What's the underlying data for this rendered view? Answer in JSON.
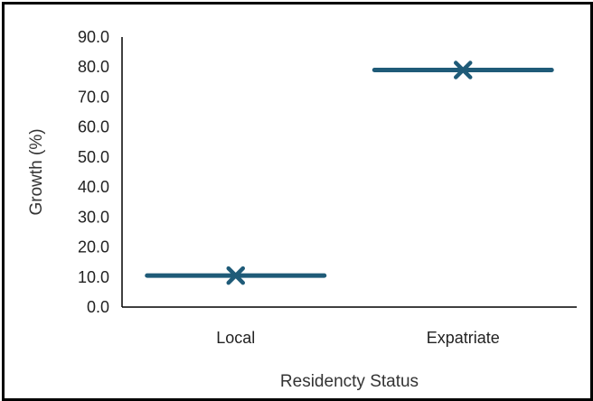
{
  "chart_data": {
    "type": "scatter",
    "xlabel": "Residencty Status",
    "ylabel": "Growth (%)",
    "categories": [
      "Local",
      "Expatriate"
    ],
    "values": [
      10.5,
      79.0
    ],
    "ylim": [
      0,
      90
    ],
    "yticks": [
      "0.0",
      "10.0",
      "20.0",
      "30.0",
      "40.0",
      "50.0",
      "60.0",
      "70.0",
      "80.0",
      "90.0"
    ],
    "grid": false,
    "series_color": "#1f5b78",
    "marker": "x-with-horizontal-bar"
  }
}
